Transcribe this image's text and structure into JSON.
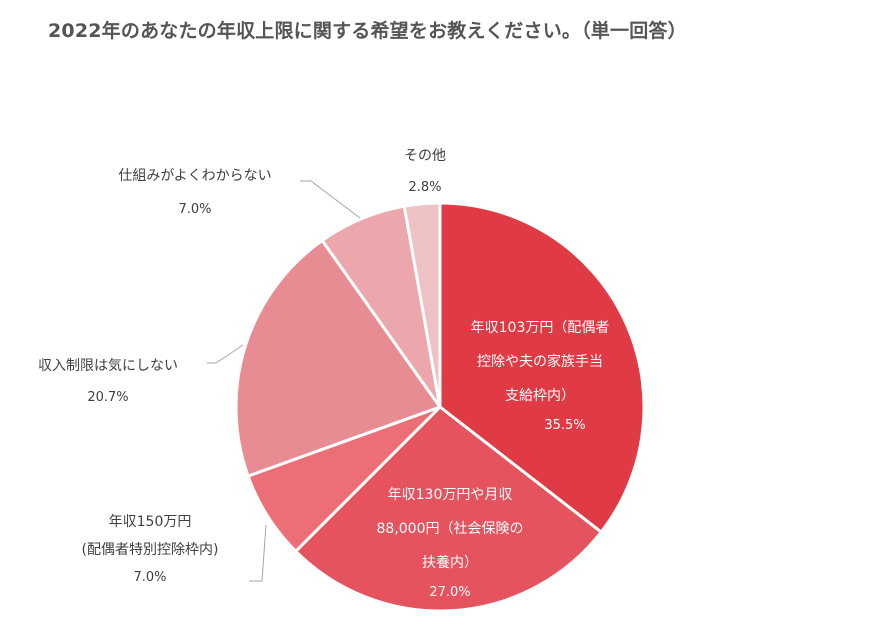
{
  "title": "2022年のあなたの年収上限に関する希望をお教えください。（単一回答）",
  "chart_data": {
    "type": "pie",
    "title": "2022年のあなたの年収上限に関する希望をお教えください。（単一回答）",
    "start_angle": "12 o'clock, clockwise",
    "slices": [
      {
        "label": "年収103万円（配偶者控除や夫の家族手当支給枠内）",
        "value": 35.5,
        "color": "#E03A45"
      },
      {
        "label": "年収130万円や月収88,000円（社会保険の扶養内）",
        "value": 27.0,
        "color": "#E5535E"
      },
      {
        "label": "年収150万円(配偶者特別控除枠内)",
        "value": 7.0,
        "color": "#EC6E76"
      },
      {
        "label": "収入制限は気にしない",
        "value": 20.7,
        "color": "#E88C93"
      },
      {
        "label": "仕組みがよくわからない",
        "value": 7.0,
        "color": "#EBA7AB"
      },
      {
        "label": "その他",
        "value": 2.8,
        "color": "#EEC1C4"
      }
    ],
    "legend": "none (data labels)"
  },
  "labels": {
    "s103": {
      "line1": "年収103万円（配偶者",
      "line2": "控除や夫の家族手当",
      "line3": "支給枠内）",
      "pct": "35.5%"
    },
    "s130": {
      "line1": "年収130万円や月収",
      "line2": "88,000円（社会保険の",
      "line3": "扶養内）",
      "pct": "27.0%"
    },
    "s150": {
      "line1": "年収150万円",
      "line2": "(配偶者特別控除枠内)",
      "pct": "7.0%"
    },
    "free": {
      "line1": "収入制限は気にしない",
      "pct": "20.7%"
    },
    "unknown": {
      "line1": "仕組みがよくわからない",
      "pct": "7.0%"
    },
    "other": {
      "line1": "その他",
      "pct": "2.8%"
    }
  }
}
